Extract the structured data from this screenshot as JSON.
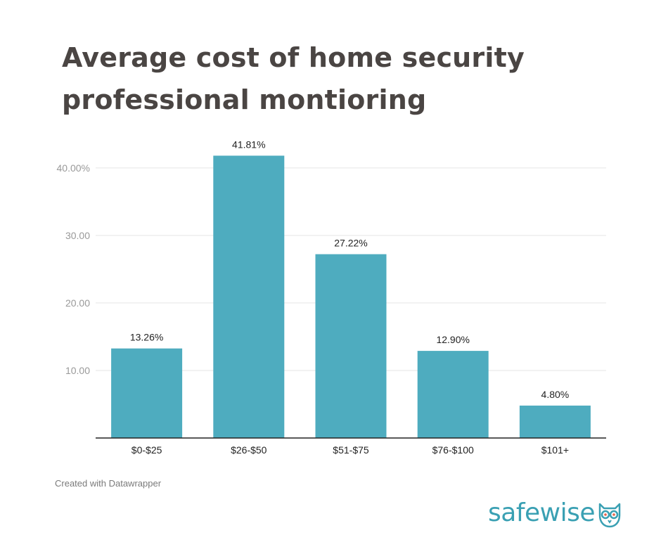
{
  "title": "Average cost of home security professional montioring",
  "footer_note": "Created with Datawrapper",
  "brand": {
    "part1": "safe",
    "part2": "wise",
    "icon": "owl-icon",
    "color": "#3aa0b3"
  },
  "colors": {
    "bar": "#4eacbf",
    "grid": "#e5e5e5",
    "axis": "#222222",
    "tick_label": "#999999",
    "value_label": "#222222",
    "title": "#4a4543"
  },
  "chart_data": {
    "type": "bar",
    "categories": [
      "$0-$25",
      "$26-$50",
      "$51-$75",
      "$76-$100",
      "$101+"
    ],
    "values": [
      13.26,
      41.81,
      27.22,
      12.9,
      4.8
    ],
    "value_labels": [
      "13.26%",
      "41.81%",
      "27.22%",
      "12.90%",
      "4.80%"
    ],
    "yticks": [
      10,
      20,
      30,
      40
    ],
    "ytick_labels": [
      "10.00",
      "20.00",
      "30.00",
      "40.00%"
    ],
    "ylim": [
      0,
      43
    ],
    "grid": true,
    "xlabel": "",
    "ylabel": ""
  }
}
